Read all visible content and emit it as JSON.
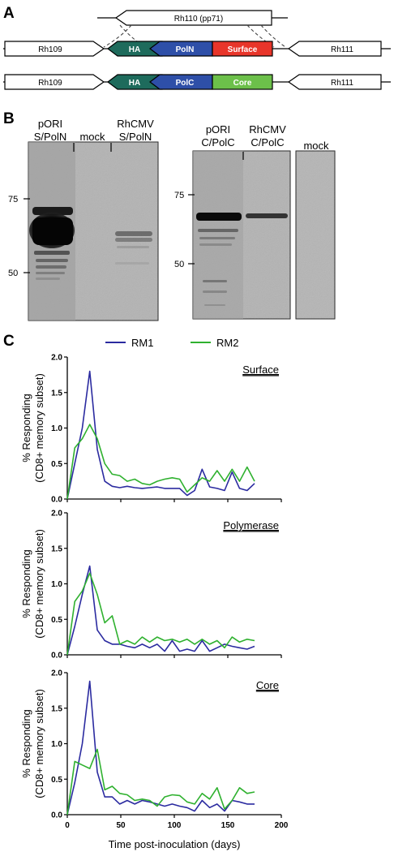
{
  "panel_a": {
    "label": "A",
    "genes": {
      "rh109": "Rh109",
      "rh110": "Rh110 (pp71)",
      "rh111": "Rh111",
      "ha": "HA",
      "poln": "PolN",
      "polc": "PolC",
      "surface": "Surface",
      "core": "Core"
    },
    "colors": {
      "ha": "#1e6b5c",
      "pol": "#2e4fa8",
      "surface": "#e8352a",
      "core": "#6cc04a"
    }
  },
  "panel_b": {
    "label": "B",
    "blot1": {
      "lanes": [
        {
          "line1": "pORI",
          "line2": "S/PolN"
        },
        {
          "line1": "mock",
          "line2": ""
        },
        {
          "line1": "RhCMV",
          "line2": "S/PolN"
        }
      ],
      "markers": [
        "75",
        "50"
      ]
    },
    "blot2": {
      "lanes": [
        {
          "line1": "pORI",
          "line2": "C/PolC"
        },
        {
          "line1": "RhCMV",
          "line2": "C/PolC"
        }
      ],
      "markers": [
        "75",
        "50"
      ]
    },
    "blot3": {
      "lanes": [
        {
          "line1": "mock",
          "line2": ""
        }
      ]
    }
  },
  "panel_c": {
    "label": "C",
    "legend": [
      {
        "name": "RM1",
        "color": "#2b2ba0"
      },
      {
        "name": "RM2",
        "color": "#2fb12f"
      }
    ],
    "ylabel_line1": "% Responding",
    "ylabel_line2": "(CD8+ memory subset)",
    "xlabel": "Time post-inoculation (days)"
  },
  "chart_data": [
    {
      "type": "line",
      "title": "Surface",
      "xlabel": "Time post-inoculation (days)",
      "ylabel": "% Responding (CD8+ memory subset)",
      "xlim": [
        0,
        200
      ],
      "ylim": [
        0,
        2.0
      ],
      "xticks": [
        "0",
        "50",
        "100",
        "150",
        "200"
      ],
      "yticks": [
        "0.0",
        "0.5",
        "1.0",
        "1.5",
        "2.0"
      ],
      "series": [
        {
          "name": "RM1",
          "color": "#2b2ba0",
          "x": [
            0,
            7,
            14,
            21,
            28,
            35,
            42,
            49,
            56,
            63,
            70,
            77,
            84,
            91,
            98,
            105,
            112,
            119,
            126,
            133,
            140,
            147,
            154,
            161,
            168,
            175
          ],
          "y": [
            0,
            0.5,
            1.0,
            1.8,
            0.7,
            0.25,
            0.18,
            0.16,
            0.18,
            0.16,
            0.15,
            0.16,
            0.17,
            0.15,
            0.15,
            0.15,
            0.05,
            0.12,
            0.42,
            0.17,
            0.15,
            0.12,
            0.38,
            0.15,
            0.12,
            0.22
          ]
        },
        {
          "name": "RM2",
          "color": "#2fb12f",
          "x": [
            0,
            7,
            14,
            21,
            28,
            35,
            42,
            49,
            56,
            63,
            70,
            77,
            84,
            91,
            98,
            105,
            112,
            119,
            126,
            133,
            140,
            147,
            154,
            161,
            168,
            175
          ],
          "y": [
            0,
            0.72,
            0.85,
            1.05,
            0.85,
            0.5,
            0.35,
            0.33,
            0.25,
            0.28,
            0.22,
            0.2,
            0.25,
            0.28,
            0.3,
            0.28,
            0.1,
            0.2,
            0.3,
            0.25,
            0.4,
            0.25,
            0.42,
            0.25,
            0.45,
            0.25
          ]
        }
      ]
    },
    {
      "type": "line",
      "title": "Polymerase",
      "xlabel": "Time post-inoculation (days)",
      "ylabel": "% Responding (CD8+ memory subset)",
      "xlim": [
        0,
        200
      ],
      "ylim": [
        0,
        2.0
      ],
      "xticks": [
        "0",
        "50",
        "100",
        "150",
        "200"
      ],
      "yticks": [
        "0.0",
        "0.5",
        "1.0",
        "1.5",
        "2.0"
      ],
      "series": [
        {
          "name": "RM1",
          "color": "#2b2ba0",
          "x": [
            0,
            7,
            14,
            21,
            28,
            35,
            42,
            49,
            56,
            63,
            70,
            77,
            84,
            91,
            98,
            105,
            112,
            119,
            126,
            133,
            140,
            147,
            154,
            161,
            168,
            175
          ],
          "y": [
            0,
            0.4,
            0.85,
            1.25,
            0.35,
            0.2,
            0.15,
            0.15,
            0.12,
            0.1,
            0.15,
            0.1,
            0.15,
            0.05,
            0.2,
            0.05,
            0.08,
            0.05,
            0.2,
            0.05,
            0.1,
            0.15,
            0.12,
            0.1,
            0.08,
            0.12
          ]
        },
        {
          "name": "RM2",
          "color": "#2fb12f",
          "x": [
            0,
            7,
            14,
            21,
            28,
            35,
            42,
            49,
            56,
            63,
            70,
            77,
            84,
            91,
            98,
            105,
            112,
            119,
            126,
            133,
            140,
            147,
            154,
            161,
            168,
            175
          ],
          "y": [
            0,
            0.75,
            0.9,
            1.15,
            0.85,
            0.45,
            0.55,
            0.15,
            0.2,
            0.15,
            0.25,
            0.18,
            0.25,
            0.2,
            0.22,
            0.18,
            0.22,
            0.15,
            0.22,
            0.15,
            0.2,
            0.1,
            0.25,
            0.18,
            0.22,
            0.2
          ]
        }
      ]
    },
    {
      "type": "line",
      "title": "Core",
      "xlabel": "Time post-inoculation (days)",
      "ylabel": "% Responding (CD8+ memory subset)",
      "xlim": [
        0,
        200
      ],
      "ylim": [
        0,
        2.0
      ],
      "xticks": [
        "0",
        "50",
        "100",
        "150",
        "200"
      ],
      "yticks": [
        "0.0",
        "0.5",
        "1.0",
        "1.5",
        "2.0"
      ],
      "series": [
        {
          "name": "RM1",
          "color": "#2b2ba0",
          "x": [
            0,
            7,
            14,
            21,
            28,
            35,
            42,
            49,
            56,
            63,
            70,
            77,
            84,
            91,
            98,
            105,
            112,
            119,
            126,
            133,
            140,
            147,
            154,
            161,
            168,
            175
          ],
          "y": [
            0,
            0.45,
            1.0,
            1.88,
            0.6,
            0.25,
            0.25,
            0.15,
            0.2,
            0.15,
            0.2,
            0.18,
            0.15,
            0.12,
            0.15,
            0.12,
            0.1,
            0.05,
            0.2,
            0.1,
            0.15,
            0.05,
            0.2,
            0.18,
            0.15,
            0.15
          ]
        },
        {
          "name": "RM2",
          "color": "#2fb12f",
          "x": [
            0,
            7,
            14,
            21,
            28,
            35,
            42,
            49,
            56,
            63,
            70,
            77,
            84,
            91,
            98,
            105,
            112,
            119,
            126,
            133,
            140,
            147,
            154,
            161,
            168,
            175
          ],
          "y": [
            0,
            0.75,
            0.7,
            0.65,
            0.92,
            0.35,
            0.4,
            0.3,
            0.28,
            0.2,
            0.22,
            0.2,
            0.12,
            0.25,
            0.28,
            0.27,
            0.18,
            0.15,
            0.3,
            0.22,
            0.38,
            0.08,
            0.2,
            0.38,
            0.3,
            0.32
          ]
        }
      ]
    }
  ]
}
